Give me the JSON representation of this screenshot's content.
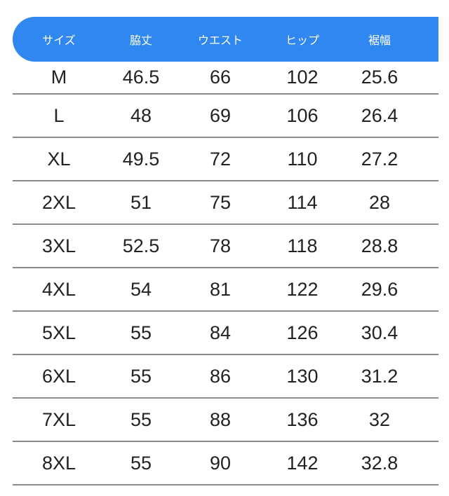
{
  "header": [
    "サイズ",
    "脇丈",
    "ウエスト",
    "ヒップ",
    "裾幅"
  ],
  "rows": [
    [
      "M",
      "46.5",
      "66",
      "102",
      "25.6"
    ],
    [
      "L",
      "48",
      "69",
      "106",
      "26.4"
    ],
    [
      "XL",
      "49.5",
      "72",
      "110",
      "27.2"
    ],
    [
      "2XL",
      "51",
      "75",
      "114",
      "28"
    ],
    [
      "3XL",
      "52.5",
      "78",
      "118",
      "28.8"
    ],
    [
      "4XL",
      "54",
      "81",
      "122",
      "29.6"
    ],
    [
      "5XL",
      "55",
      "84",
      "126",
      "30.4"
    ],
    [
      "6XL",
      "55",
      "86",
      "130",
      "31.2"
    ],
    [
      "7XL",
      "55",
      "88",
      "136",
      "32"
    ],
    [
      "8XL",
      "55",
      "90",
      "142",
      "32.8"
    ]
  ],
  "colors": {
    "header_bg": "#2f87ef",
    "divider": "#8a8a8a"
  }
}
